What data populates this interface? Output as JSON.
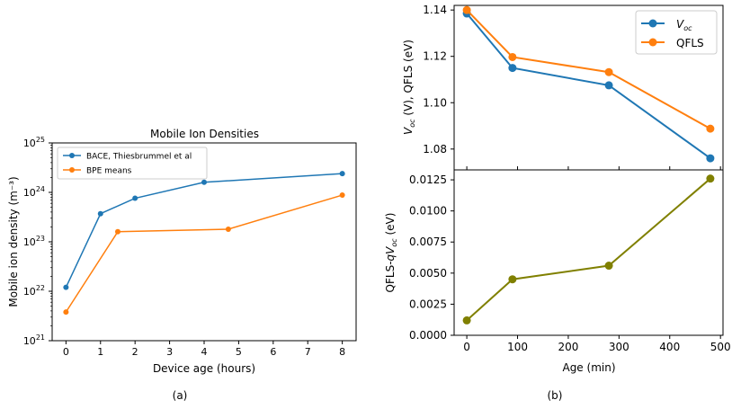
{
  "panels": {
    "a": {
      "caption": "(a)"
    },
    "b": {
      "caption": "(b)"
    }
  },
  "chart_data": [
    {
      "id": "a",
      "type": "line",
      "title": "Mobile Ion Densities",
      "xlabel": "Device age (hours)",
      "ylabel": "Mobile ion density (m⁻³)",
      "yscale": "log",
      "xlim": [
        -0.4,
        8.4
      ],
      "ylim": [
        1e+21,
        1e+25
      ],
      "xticks": [
        "0",
        "1",
        "2",
        "3",
        "4",
        "5",
        "6",
        "7",
        "8"
      ],
      "yticks": [
        {
          "base": "10",
          "exp": "21"
        },
        {
          "base": "10",
          "exp": "22"
        },
        {
          "base": "10",
          "exp": "23"
        },
        {
          "base": "10",
          "exp": "24"
        },
        {
          "base": "10",
          "exp": "25"
        }
      ],
      "legend": "upper-left",
      "series": [
        {
          "name": "BACE, Thiesbrummel et al",
          "color": "#1f77b4",
          "x": [
            0,
            1,
            2,
            4,
            8
          ],
          "y": [
            1.2e+22,
            3.7e+23,
            7.6e+23,
            1.6e+24,
            2.4e+24
          ]
        },
        {
          "name": "BPE means",
          "color": "#ff7f0e",
          "x": [
            0,
            1.5,
            4.7,
            8
          ],
          "y": [
            3.8e+21,
            1.6e+23,
            1.8e+23,
            8.8e+23
          ]
        }
      ]
    },
    {
      "id": "b-top",
      "type": "line",
      "ylabel": "V_oc (V), QFLS (eV)",
      "xlim": [
        -25,
        505
      ],
      "ylim": [
        1.071,
        1.142
      ],
      "yticks": [
        "1.08",
        "1.10",
        "1.12",
        "1.14"
      ],
      "legend": "upper-right",
      "series": [
        {
          "name": "V_oc",
          "color": "#1f77b4",
          "x": [
            0,
            90,
            280,
            480
          ],
          "y": [
            1.1385,
            1.115,
            1.1075,
            1.076
          ]
        },
        {
          "name": "QFLS",
          "color": "#ff7f0e",
          "x": [
            0,
            90,
            280,
            480
          ],
          "y": [
            1.14,
            1.1197,
            1.1132,
            1.0888
          ]
        }
      ]
    },
    {
      "id": "b-bottom",
      "type": "line",
      "xlabel": "Age (min)",
      "ylabel": "QFLS-qV_oc (eV)",
      "xlim": [
        -25,
        505
      ],
      "ylim": [
        0,
        0.0133
      ],
      "xticks": [
        "0",
        "100",
        "200",
        "300",
        "400",
        "500"
      ],
      "yticks": [
        "0.0000",
        "0.0025",
        "0.0050",
        "0.0075",
        "0.0100",
        "0.0125"
      ],
      "series": [
        {
          "color": "#808000",
          "x": [
            0,
            90,
            280,
            480
          ],
          "y": [
            0.0012,
            0.0045,
            0.0056,
            0.0126
          ]
        }
      ]
    }
  ]
}
